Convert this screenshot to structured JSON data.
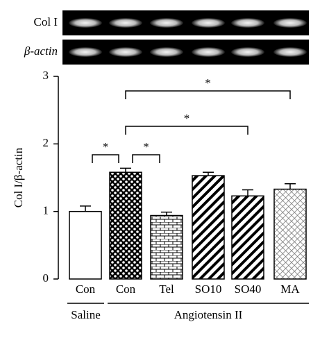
{
  "chart_data": {
    "type": "bar",
    "blot_labels": [
      "Col I",
      "β-actin"
    ],
    "ylabel": "Col I/β-actin",
    "categories": [
      "Con",
      "Con",
      "Tel",
      "SO10",
      "SO40",
      "MA"
    ],
    "values": [
      1.0,
      1.58,
      0.94,
      1.53,
      1.23,
      1.33
    ],
    "errors": [
      0.08,
      0.06,
      0.05,
      0.05,
      0.09,
      0.08
    ],
    "groups": [
      "Saline",
      "Angiotensin II"
    ],
    "annotations": [
      "*",
      "*",
      "*",
      "*"
    ],
    "ylim": [
      0,
      3
    ],
    "yticks": [
      0,
      1,
      2,
      3
    ]
  }
}
